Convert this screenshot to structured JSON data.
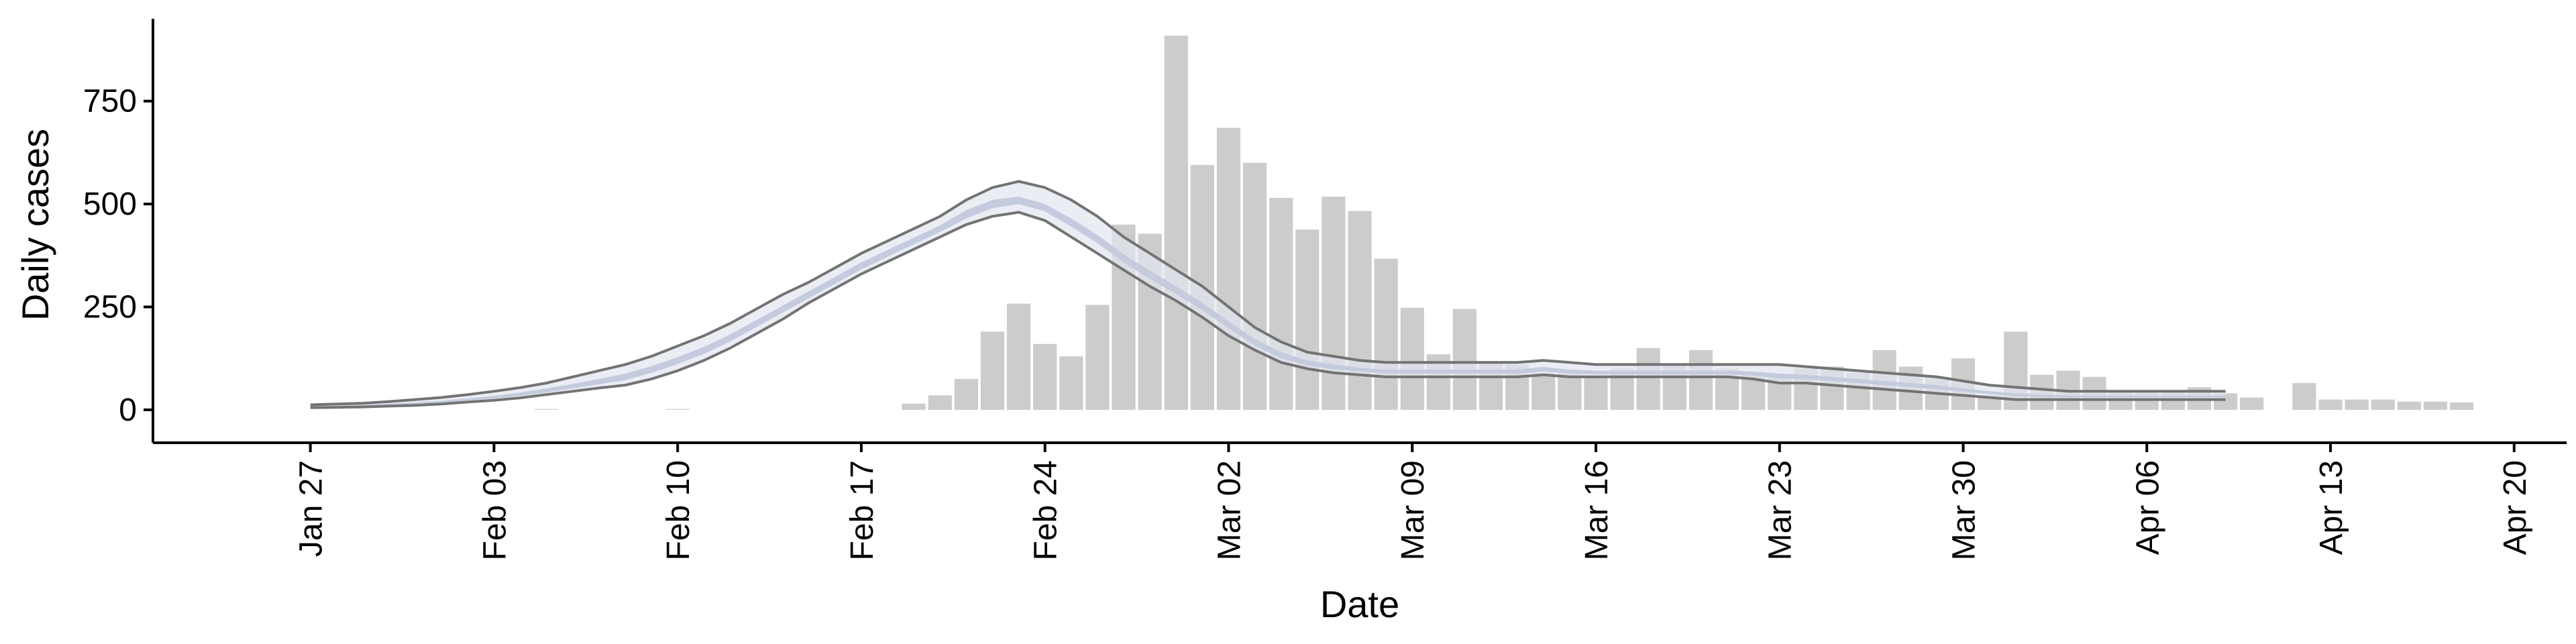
{
  "chart_data": {
    "type": "bar",
    "xlabel": "Date",
    "ylabel": "Daily cases",
    "x_axis": {
      "type": "date",
      "range": [
        "2020-01-21",
        "2020-04-22"
      ],
      "ticks": [
        {
          "date": "2020-01-27",
          "label": "Jan 27"
        },
        {
          "date": "2020-02-03",
          "label": "Feb 03"
        },
        {
          "date": "2020-02-10",
          "label": "Feb 10"
        },
        {
          "date": "2020-02-17",
          "label": "Feb 17"
        },
        {
          "date": "2020-02-24",
          "label": "Feb 24"
        },
        {
          "date": "2020-03-02",
          "label": "Mar 02"
        },
        {
          "date": "2020-03-09",
          "label": "Mar 09"
        },
        {
          "date": "2020-03-16",
          "label": "Mar 16"
        },
        {
          "date": "2020-03-23",
          "label": "Mar 23"
        },
        {
          "date": "2020-03-30",
          "label": "Mar 30"
        },
        {
          "date": "2020-04-06",
          "label": "Apr 06"
        },
        {
          "date": "2020-04-13",
          "label": "Apr 13"
        },
        {
          "date": "2020-04-20",
          "label": "Apr 20"
        }
      ]
    },
    "y_axis": {
      "range": [
        -80,
        950
      ],
      "ticks": [
        0,
        250,
        500,
        750
      ]
    },
    "grid": false,
    "legend": "none",
    "colors": {
      "bars": "#cccccc",
      "band_inner": "#c2c9dc",
      "band_outer": "#e3e6ef",
      "band_edges": "#737373",
      "axis": "#000000"
    },
    "bars": {
      "dates": [
        "2020-02-05",
        "2020-02-10",
        "2020-02-19",
        "2020-02-20",
        "2020-02-21",
        "2020-02-22",
        "2020-02-23",
        "2020-02-24",
        "2020-02-25",
        "2020-02-26",
        "2020-02-27",
        "2020-02-28",
        "2020-02-29",
        "2020-03-01",
        "2020-03-02",
        "2020-03-03",
        "2020-03-04",
        "2020-03-05",
        "2020-03-06",
        "2020-03-07",
        "2020-03-08",
        "2020-03-09",
        "2020-03-10",
        "2020-03-11",
        "2020-03-12",
        "2020-03-13",
        "2020-03-14",
        "2020-03-15",
        "2020-03-16",
        "2020-03-17",
        "2020-03-18",
        "2020-03-19",
        "2020-03-20",
        "2020-03-21",
        "2020-03-22",
        "2020-03-23",
        "2020-03-24",
        "2020-03-25",
        "2020-03-26",
        "2020-03-27",
        "2020-03-28",
        "2020-03-29",
        "2020-03-30",
        "2020-03-31",
        "2020-04-01",
        "2020-04-02",
        "2020-04-03",
        "2020-04-04",
        "2020-04-05",
        "2020-04-06",
        "2020-04-07",
        "2020-04-08",
        "2020-04-09",
        "2020-04-10",
        "2020-04-12",
        "2020-04-13",
        "2020-04-14",
        "2020-04-15",
        "2020-04-16",
        "2020-04-17",
        "2020-04-18"
      ],
      "values": [
        2,
        2,
        15,
        35,
        75,
        190,
        258,
        160,
        130,
        255,
        450,
        428,
        909,
        595,
        685,
        600,
        515,
        438,
        518,
        483,
        367,
        248,
        135,
        245,
        115,
        110,
        90,
        90,
        80,
        100,
        150,
        110,
        145,
        100,
        85,
        80,
        100,
        105,
        90,
        145,
        105,
        80,
        125,
        35,
        190,
        85,
        95,
        80,
        45,
        45,
        45,
        55,
        40,
        30,
        65,
        25,
        25,
        25,
        20,
        20,
        18
      ]
    },
    "model_fit": {
      "dates": [
        "2020-01-27",
        "2020-01-28",
        "2020-01-29",
        "2020-01-30",
        "2020-01-31",
        "2020-02-01",
        "2020-02-02",
        "2020-02-03",
        "2020-02-04",
        "2020-02-05",
        "2020-02-06",
        "2020-02-07",
        "2020-02-08",
        "2020-02-09",
        "2020-02-10",
        "2020-02-11",
        "2020-02-12",
        "2020-02-13",
        "2020-02-14",
        "2020-02-15",
        "2020-02-16",
        "2020-02-17",
        "2020-02-18",
        "2020-02-19",
        "2020-02-20",
        "2020-02-21",
        "2020-02-22",
        "2020-02-23",
        "2020-02-24",
        "2020-02-25",
        "2020-02-26",
        "2020-02-27",
        "2020-02-28",
        "2020-02-29",
        "2020-03-01",
        "2020-03-02",
        "2020-03-03",
        "2020-03-04",
        "2020-03-05",
        "2020-03-06",
        "2020-03-07",
        "2020-03-08",
        "2020-03-09",
        "2020-03-10",
        "2020-03-11",
        "2020-03-12",
        "2020-03-13",
        "2020-03-14",
        "2020-03-15",
        "2020-03-16",
        "2020-03-17",
        "2020-03-18",
        "2020-03-19",
        "2020-03-20",
        "2020-03-21",
        "2020-03-22",
        "2020-03-23",
        "2020-03-24",
        "2020-03-25",
        "2020-03-26",
        "2020-03-27",
        "2020-03-28",
        "2020-03-29",
        "2020-03-30",
        "2020-03-31",
        "2020-04-01",
        "2020-04-02",
        "2020-04-03",
        "2020-04-04",
        "2020-04-05",
        "2020-04-06",
        "2020-04-07",
        "2020-04-08",
        "2020-04-09"
      ],
      "upper": [
        12,
        14,
        16,
        20,
        25,
        30,
        37,
        45,
        54,
        65,
        80,
        95,
        110,
        130,
        155,
        180,
        210,
        245,
        280,
        310,
        345,
        380,
        410,
        440,
        470,
        510,
        540,
        555,
        540,
        510,
        470,
        420,
        380,
        340,
        300,
        250,
        200,
        165,
        140,
        130,
        120,
        115,
        115,
        115,
        115,
        115,
        115,
        120,
        115,
        110,
        110,
        110,
        110,
        110,
        110,
        110,
        110,
        105,
        100,
        95,
        90,
        85,
        80,
        70,
        60,
        55,
        50,
        45,
        45,
        45,
        45,
        45,
        45,
        45
      ],
      "lower": [
        5,
        6,
        7,
        9,
        11,
        14,
        19,
        23,
        29,
        37,
        45,
        53,
        60,
        75,
        95,
        120,
        150,
        185,
        220,
        260,
        295,
        330,
        360,
        390,
        420,
        450,
        470,
        480,
        460,
        420,
        380,
        340,
        300,
        265,
        225,
        180,
        145,
        115,
        100,
        90,
        85,
        80,
        80,
        80,
        80,
        80,
        80,
        85,
        80,
        80,
        80,
        80,
        80,
        80,
        80,
        75,
        65,
        65,
        60,
        55,
        50,
        45,
        40,
        35,
        30,
        25,
        25,
        25,
        25,
        25,
        25,
        25,
        25,
        25
      ],
      "inner_upper": [
        9,
        10,
        12,
        15,
        18,
        22,
        28,
        34,
        42,
        52,
        63,
        75,
        88,
        106,
        128,
        153,
        183,
        218,
        253,
        288,
        323,
        358,
        388,
        418,
        448,
        485,
        510,
        518,
        500,
        465,
        425,
        378,
        338,
        300,
        260,
        215,
        172,
        140,
        120,
        110,
        102,
        98,
        98,
        98,
        98,
        98,
        98,
        104,
        98,
        95,
        95,
        95,
        95,
        95,
        95,
        93,
        88,
        85,
        80,
        75,
        70,
        65,
        60,
        52,
        45,
        40,
        37,
        35,
        35,
        35,
        35,
        35,
        35,
        35
      ],
      "inner_lower": [
        7,
        8,
        9,
        11,
        14,
        17,
        23,
        27,
        34,
        42,
        52,
        62,
        72,
        90,
        111,
        136,
        166,
        201,
        236,
        271,
        306,
        341,
        372,
        402,
        432,
        465,
        490,
        500,
        482,
        445,
        405,
        358,
        318,
        281,
        242,
        198,
        156,
        125,
        108,
        98,
        93,
        88,
        88,
        88,
        88,
        88,
        88,
        93,
        88,
        86,
        86,
        86,
        86,
        86,
        86,
        83,
        76,
        74,
        70,
        65,
        60,
        55,
        50,
        44,
        38,
        33,
        31,
        30,
        30,
        30,
        30,
        30,
        30,
        30
      ]
    }
  }
}
